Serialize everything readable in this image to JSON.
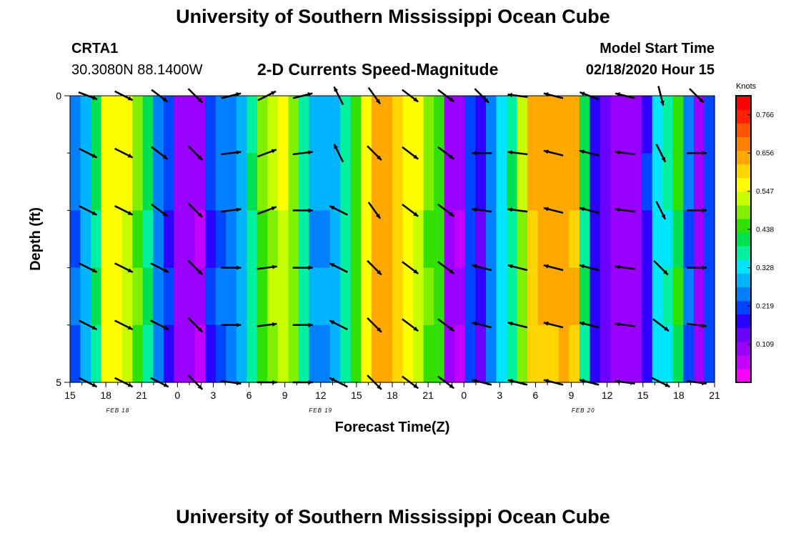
{
  "header": {
    "title": "University of Southern Mississippi Ocean Cube",
    "station_id": "CRTA1",
    "station_coords": "30.3080N 88.1400W",
    "chart_title": "2-D Currents Speed-Magnitude",
    "model_start_label": "Model Start Time",
    "model_start_value": "02/18/2020 Hour 15"
  },
  "footer": {
    "title": "University of Southern Mississippi Ocean Cube"
  },
  "colors": {
    "palette": [
      "#ff00ff",
      "#c400ff",
      "#9a00ff",
      "#6a00ff",
      "#2a00ff",
      "#0044ff",
      "#0080ff",
      "#00b4ff",
      "#00e5ff",
      "#00f0a0",
      "#00e050",
      "#30e000",
      "#80f000",
      "#c8ff00",
      "#ffff00",
      "#ffd500",
      "#ffa800",
      "#ff7f00",
      "#ff5500",
      "#ff2200",
      "#ff0000"
    ],
    "arrow": "#000000"
  },
  "chart_data": {
    "type": "heatmap",
    "title": "2-D Currents Speed-Magnitude",
    "xlabel": "Forecast Time(Z)",
    "ylabel": "Depth (ft)",
    "y_ticks": [
      "0",
      "5"
    ],
    "ylim": [
      0,
      5
    ],
    "x_ticks": [
      "15",
      "18",
      "21",
      "0",
      "3",
      "6",
      "9",
      "12",
      "15",
      "18",
      "21",
      "0",
      "3",
      "6",
      "9",
      "12",
      "15",
      "18",
      "21"
    ],
    "date_labels": [
      {
        "label": "FEB 18",
        "hour_offset": 4
      },
      {
        "label": "FEB 19",
        "hour_offset": 21
      },
      {
        "label": "FEB 20",
        "hour_offset": 43
      }
    ],
    "hours_span": 54,
    "colorbar": {
      "label": "Knots",
      "vmin": 0.0,
      "vmax": 0.82,
      "ticks": [
        "0.766",
        "0.656",
        "0.547",
        "0.438",
        "0.328",
        "0.219",
        "0.109"
      ],
      "tick_values": [
        0.766,
        0.656,
        0.547,
        0.438,
        0.328,
        0.219,
        0.109
      ]
    },
    "speed_columns_knots": [
      0.24,
      0.3,
      0.4,
      0.58,
      0.58,
      0.55,
      0.48,
      0.4,
      0.26,
      0.2,
      0.1,
      0.09,
      0.08,
      0.2,
      0.24,
      0.26,
      0.3,
      0.39,
      0.47,
      0.52,
      0.55,
      0.5,
      0.38,
      0.28,
      0.28,
      0.3,
      0.38,
      0.46,
      0.58,
      0.66,
      0.66,
      0.62,
      0.58,
      0.55,
      0.48,
      0.46,
      0.1,
      0.08,
      0.22,
      0.16,
      0.26,
      0.33,
      0.39,
      0.51,
      0.63,
      0.65,
      0.65,
      0.66,
      0.64,
      0.4,
      0.17,
      0.13,
      0.09,
      0.1,
      0.1,
      0.19,
      0.34,
      0.36,
      0.44,
      0.24,
      0.1,
      0.22
    ],
    "depth_rows": 5,
    "vectors": [
      {
        "hour": 1.5,
        "rows": [
          [
            0.8,
            0.3
          ],
          [
            0.8,
            0.4
          ],
          [
            0.8,
            0.4
          ],
          [
            0.8,
            0.4
          ],
          [
            0.8,
            0.4
          ],
          [
            0.8,
            0.4
          ]
        ]
      },
      {
        "hour": 4.5,
        "rows": [
          [
            0.8,
            0.4
          ],
          [
            0.8,
            0.4
          ],
          [
            0.8,
            0.4
          ],
          [
            0.8,
            0.4
          ],
          [
            0.8,
            0.4
          ],
          [
            0.8,
            0.4
          ]
        ]
      },
      {
        "hour": 7.5,
        "rows": [
          [
            0.8,
            0.6
          ],
          [
            0.8,
            0.6
          ],
          [
            0.8,
            0.6
          ],
          [
            0.8,
            0.4
          ],
          [
            0.8,
            0.4
          ],
          [
            0.8,
            0.4
          ]
        ]
      },
      {
        "hour": 10.5,
        "rows": [
          [
            0.6,
            0.6
          ],
          [
            0.6,
            0.6
          ],
          [
            0.6,
            0.6
          ],
          [
            0.6,
            0.6
          ],
          [
            0.6,
            0.6
          ],
          [
            0.6,
            0.6
          ]
        ]
      },
      {
        "hour": 13.5,
        "rows": [
          [
            0.8,
            -0.2
          ],
          [
            0.8,
            -0.1
          ],
          [
            0.8,
            -0.1
          ],
          [
            0.8,
            0
          ],
          [
            0.8,
            0
          ],
          [
            0.8,
            0.1
          ]
        ]
      },
      {
        "hour": 16.5,
        "rows": [
          [
            0.8,
            -0.4
          ],
          [
            0.8,
            -0.3
          ],
          [
            0.8,
            -0.3
          ],
          [
            0.8,
            -0.1
          ],
          [
            0.8,
            -0.1
          ],
          [
            0.8,
            0
          ]
        ]
      },
      {
        "hour": 19.5,
        "rows": [
          [
            0.8,
            -0.2
          ],
          [
            0.8,
            -0.1
          ],
          [
            0.8,
            0
          ],
          [
            0.8,
            0
          ],
          [
            0.8,
            0
          ],
          [
            0.8,
            0
          ]
        ]
      },
      {
        "hour": 22.5,
        "rows": [
          [
            -0.4,
            -0.8
          ],
          [
            -0.4,
            -0.8
          ],
          [
            -0.8,
            -0.4
          ],
          [
            -0.8,
            -0.4
          ],
          [
            -0.8,
            -0.4
          ],
          [
            -0.8,
            -0.4
          ]
        ]
      },
      {
        "hour": 25.5,
        "rows": [
          [
            0.5,
            0.7
          ],
          [
            0.6,
            0.6
          ],
          [
            0.5,
            0.7
          ],
          [
            0.6,
            0.6
          ],
          [
            0.6,
            0.6
          ],
          [
            0.6,
            0.6
          ]
        ]
      },
      {
        "hour": 28.5,
        "rows": [
          [
            0.8,
            0.6
          ],
          [
            0.8,
            0.6
          ],
          [
            0.8,
            0.6
          ],
          [
            0.8,
            0.6
          ],
          [
            0.8,
            0.6
          ],
          [
            0.8,
            0.6
          ]
        ]
      },
      {
        "hour": 31.5,
        "rows": [
          [
            0.8,
            0.6
          ],
          [
            0.8,
            0.6
          ],
          [
            0.8,
            0.6
          ],
          [
            0.8,
            0.6
          ],
          [
            0.8,
            0.6
          ],
          [
            0.8,
            0.6
          ]
        ]
      },
      {
        "hour": 34.5,
        "rows": [
          [
            0.6,
            0.6
          ],
          [
            -0.8,
            0
          ],
          [
            -0.8,
            -0.1
          ],
          [
            -0.8,
            -0.2
          ],
          [
            -0.8,
            -0.2
          ],
          [
            -0.8,
            -0.2
          ]
        ]
      },
      {
        "hour": 37.5,
        "rows": [
          [
            -0.8,
            -0.1
          ],
          [
            -0.8,
            -0.1
          ],
          [
            -0.8,
            -0.1
          ],
          [
            -0.8,
            -0.2
          ],
          [
            -0.8,
            -0.2
          ],
          [
            -0.8,
            -0.2
          ]
        ]
      },
      {
        "hour": 40.5,
        "rows": [
          [
            -0.8,
            -0.2
          ],
          [
            -0.8,
            -0.2
          ],
          [
            -0.8,
            -0.2
          ],
          [
            -0.8,
            -0.2
          ],
          [
            -0.8,
            -0.2
          ],
          [
            -0.8,
            -0.2
          ]
        ]
      },
      {
        "hour": 43.5,
        "rows": [
          [
            -0.8,
            -0.3
          ],
          [
            -0.8,
            -0.2
          ],
          [
            -0.8,
            -0.2
          ],
          [
            -0.8,
            -0.2
          ],
          [
            -0.8,
            -0.2
          ],
          [
            -0.8,
            -0.2
          ]
        ]
      },
      {
        "hour": 46.5,
        "rows": [
          [
            -0.8,
            -0.2
          ],
          [
            -0.8,
            -0.1
          ],
          [
            -0.8,
            -0.1
          ],
          [
            -0.8,
            -0.1
          ],
          [
            -0.8,
            -0.1
          ],
          [
            -0.8,
            -0.1
          ]
        ]
      },
      {
        "hour": 49.5,
        "rows": [
          [
            0.2,
            0.8
          ],
          [
            0.4,
            0.8
          ],
          [
            0.4,
            0.8
          ],
          [
            0.6,
            0.6
          ],
          [
            0.8,
            0.6
          ],
          [
            0.8,
            0.4
          ]
        ]
      },
      {
        "hour": 52.5,
        "rows": [
          [
            0.5,
            0.5
          ],
          [
            0.8,
            0
          ],
          [
            0.8,
            0
          ],
          [
            0.8,
            0
          ],
          [
            0.8,
            0.1
          ],
          [
            0.8,
            0.1
          ]
        ]
      }
    ]
  }
}
